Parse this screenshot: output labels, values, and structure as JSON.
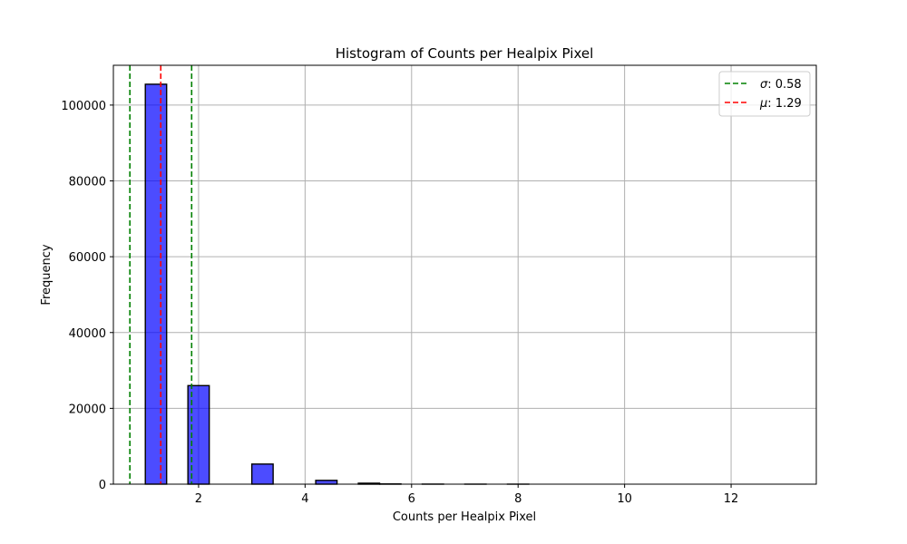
{
  "chart_data": {
    "type": "bar",
    "title": "Histogram of Counts per Healpix Pixel",
    "xlabel": "Counts per Healpix Pixel",
    "ylabel": "Frequency",
    "xlim": [
      0.4,
      13.6
    ],
    "ylim": [
      0,
      110500
    ],
    "xticks": [
      2,
      4,
      6,
      8,
      10,
      12
    ],
    "yticks": [
      0,
      20000,
      40000,
      60000,
      80000,
      100000
    ],
    "grid": true,
    "bin_width": 0.4,
    "bins": [
      {
        "x0": 1.0,
        "value": 105500
      },
      {
        "x0": 1.8,
        "value": 26000
      },
      {
        "x0": 3.0,
        "value": 5300
      },
      {
        "x0": 4.2,
        "value": 1000
      },
      {
        "x0": 5.0,
        "value": 250
      },
      {
        "x0": 5.4,
        "value": 60
      },
      {
        "x0": 6.2,
        "value": 15
      },
      {
        "x0": 7.0,
        "value": 4
      },
      {
        "x0": 7.8,
        "value": 1
      },
      {
        "x0": 8.6,
        "value": 0
      },
      {
        "x0": 9.4,
        "value": 0
      },
      {
        "x0": 10.2,
        "value": 0
      },
      {
        "x0": 11.0,
        "value": 0
      },
      {
        "x0": 11.8,
        "value": 0
      },
      {
        "x0": 12.6,
        "value": 0
      }
    ],
    "bar_color": "#0000ff",
    "bar_edge_color": "#000000",
    "vlines": [
      {
        "x": 0.71,
        "color": "#008000",
        "style": "dashed",
        "legend": true
      },
      {
        "x": 1.29,
        "color": "#ff0000",
        "style": "dashed",
        "legend": true
      },
      {
        "x": 1.87,
        "color": "#008000",
        "style": "dashed",
        "legend": false
      }
    ],
    "legend": {
      "placement": "top-right",
      "entries": [
        {
          "symbol": "σ",
          "text": ": 0.58",
          "color": "#008000"
        },
        {
          "symbol": "μ",
          "text": ": 1.29",
          "color": "#ff0000"
        }
      ]
    }
  }
}
